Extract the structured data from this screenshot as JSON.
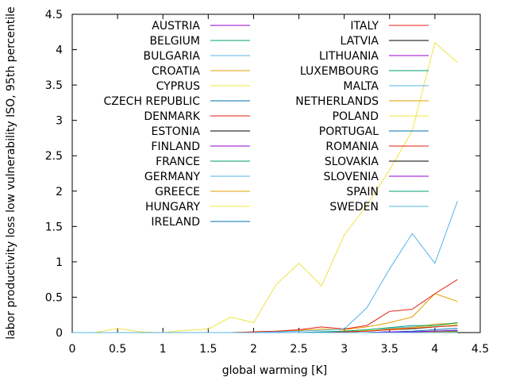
{
  "chart_data": {
    "type": "line",
    "title": "",
    "xlabel": "global warming [K]",
    "ylabel": "labor productivity loss low vulnerability ISO, 95th percentile",
    "xlim": [
      0,
      4.5
    ],
    "ylim": [
      0,
      4.5
    ],
    "xticks": [
      "0",
      "0.5",
      "1",
      "1.5",
      "2",
      "2.5",
      "3",
      "3.5",
      "4",
      "4.5"
    ],
    "yticks": [
      "0",
      "0.5",
      "1",
      "1.5",
      "2",
      "2.5",
      "3",
      "3.5",
      "4",
      "4.5"
    ],
    "grid": false,
    "legend_position": "top, two columns",
    "x": [
      0,
      0.25,
      0.5,
      0.75,
      1,
      1.25,
      1.5,
      1.75,
      2,
      2.25,
      2.5,
      2.75,
      3,
      3.25,
      3.5,
      3.75,
      4,
      4.25
    ],
    "series": [
      {
        "name": "AUSTRIA",
        "color": "#9400d3",
        "values": [
          0,
          0,
          0,
          0,
          0,
          0,
          0,
          0,
          0,
          0,
          0,
          0,
          0,
          0,
          0,
          0,
          0.01,
          0.02
        ]
      },
      {
        "name": "BELGIUM",
        "color": "#009e73",
        "values": [
          0,
          0,
          0,
          0,
          0,
          0,
          0,
          0,
          0,
          0,
          0,
          0,
          0,
          0,
          0.01,
          0.01,
          0.02,
          0.03
        ]
      },
      {
        "name": "BULGARIA",
        "color": "#56b4e9",
        "values": [
          0,
          0,
          0,
          0,
          0,
          0,
          0,
          0,
          0,
          0,
          0,
          0,
          0.01,
          0.02,
          0.06,
          0.08,
          0.1,
          0.14
        ]
      },
      {
        "name": "CROATIA",
        "color": "#e69f00",
        "values": [
          0,
          0,
          0,
          0,
          0,
          0,
          0,
          0,
          0,
          0,
          0,
          0,
          0.01,
          0.02,
          0.05,
          0.07,
          0.12,
          0.13
        ]
      },
      {
        "name": "CYPRUS",
        "color": "#f0e442",
        "values": [
          0,
          0,
          0,
          0,
          0,
          0,
          0,
          0,
          0,
          0,
          0,
          0.01,
          0.02,
          0.03,
          0.04,
          0.05,
          0.1,
          0.12
        ]
      },
      {
        "name": "CZECH REPUBLIC",
        "color": "#0072b2",
        "values": [
          0,
          0,
          0,
          0,
          0,
          0,
          0,
          0,
          0,
          0,
          0,
          0,
          0,
          0,
          0,
          0.01,
          0.01,
          0.02
        ]
      },
      {
        "name": "DENMARK",
        "color": "#e51e10",
        "values": [
          0,
          0,
          0,
          0,
          0,
          0,
          0,
          0,
          0,
          0,
          0,
          0,
          0,
          0,
          0,
          0,
          0,
          0.01
        ]
      },
      {
        "name": "ESTONIA",
        "color": "#000000",
        "values": [
          0,
          0,
          0,
          0,
          0,
          0,
          0,
          0,
          0,
          0,
          0,
          0,
          0,
          0,
          0,
          0,
          0,
          0
        ]
      },
      {
        "name": "FINLAND",
        "color": "#9400d3",
        "values": [
          0,
          0,
          0,
          0,
          0,
          0,
          0,
          0,
          0,
          0,
          0,
          0,
          0,
          0,
          0,
          0,
          0,
          0
        ]
      },
      {
        "name": "FRANCE",
        "color": "#009e73",
        "values": [
          0,
          0,
          0,
          0,
          0,
          0,
          0,
          0,
          0,
          0,
          0,
          0,
          0.01,
          0.02,
          0.04,
          0.05,
          0.08,
          0.1
        ]
      },
      {
        "name": "GERMANY",
        "color": "#56b4e9",
        "values": [
          0,
          0,
          0,
          0,
          0,
          0,
          0,
          0,
          0,
          0,
          0,
          0,
          0,
          0,
          0.01,
          0.01,
          0.02,
          0.03
        ]
      },
      {
        "name": "GREECE",
        "color": "#e69f00",
        "values": [
          0,
          0,
          0,
          0,
          0,
          0,
          0,
          0,
          0.01,
          0.02,
          0.03,
          0.05,
          0.04,
          0.08,
          0.14,
          0.22,
          0.55,
          0.44
        ]
      },
      {
        "name": "HUNGARY",
        "color": "#f0e442",
        "values": [
          0,
          0,
          0,
          0,
          0,
          0,
          0,
          0,
          0,
          0,
          0,
          0,
          0.01,
          0.02,
          0.04,
          0.06,
          0.1,
          0.13
        ]
      },
      {
        "name": "IRELAND",
        "color": "#0072b2",
        "values": [
          0,
          0,
          0,
          0,
          0,
          0,
          0,
          0,
          0,
          0,
          0,
          0,
          0,
          0,
          0,
          0,
          0,
          0
        ]
      },
      {
        "name": "ITALY",
        "color": "#e51e10",
        "values": [
          0,
          0,
          0,
          0,
          0,
          0,
          0,
          0,
          0.01,
          0.02,
          0.04,
          0.08,
          0.05,
          0.1,
          0.3,
          0.33,
          0.55,
          0.75
        ]
      },
      {
        "name": "LATVIA",
        "color": "#000000",
        "values": [
          0,
          0,
          0,
          0,
          0,
          0,
          0,
          0,
          0,
          0,
          0,
          0,
          0,
          0,
          0,
          0,
          0,
          0
        ]
      },
      {
        "name": "LITHUANIA",
        "color": "#9400d3",
        "values": [
          0,
          0,
          0,
          0,
          0,
          0,
          0,
          0,
          0,
          0,
          0,
          0,
          0,
          0,
          0,
          0,
          0,
          0
        ]
      },
      {
        "name": "LUXEMBOURG",
        "color": "#009e73",
        "values": [
          0,
          0,
          0,
          0,
          0,
          0,
          0,
          0,
          0,
          0,
          0,
          0,
          0,
          0,
          0,
          0,
          0.01,
          0.02
        ]
      },
      {
        "name": "MALTA",
        "color": "#56b4e9",
        "values": [
          0,
          0,
          0,
          0,
          0,
          0,
          0,
          0,
          0,
          0.01,
          0.02,
          0.03,
          0.05,
          0.35,
          0.9,
          1.4,
          0.98,
          1.86
        ]
      },
      {
        "name": "NETHERLANDS",
        "color": "#e69f00",
        "values": [
          0,
          0,
          0,
          0,
          0,
          0,
          0,
          0,
          0,
          0,
          0,
          0,
          0,
          0,
          0,
          0,
          0.01,
          0.01
        ]
      },
      {
        "name": "POLAND",
        "color": "#f0e442",
        "values": [
          0,
          0,
          0.06,
          0.01,
          0,
          0.03,
          0.05,
          0.22,
          0.14,
          0.68,
          0.98,
          0.66,
          1.38,
          1.8,
          2.3,
          2.85,
          4.1,
          3.82
        ]
      },
      {
        "name": "PORTUGAL",
        "color": "#0072b2",
        "values": [
          0,
          0,
          0,
          0,
          0,
          0,
          0,
          0,
          0,
          0,
          0,
          0,
          0,
          0,
          0.01,
          0.02,
          0.04,
          0.06
        ]
      },
      {
        "name": "ROMANIA",
        "color": "#e51e10",
        "values": [
          0,
          0,
          0,
          0,
          0,
          0,
          0,
          0,
          0,
          0,
          0,
          0,
          0.01,
          0.02,
          0.04,
          0.06,
          0.08,
          0.1
        ]
      },
      {
        "name": "SLOVAKIA",
        "color": "#000000",
        "values": [
          0,
          0,
          0,
          0,
          0,
          0,
          0,
          0,
          0,
          0,
          0,
          0,
          0,
          0,
          0,
          0,
          0,
          0
        ]
      },
      {
        "name": "SLOVENIA",
        "color": "#9400d3",
        "values": [
          0,
          0,
          0,
          0,
          0,
          0,
          0,
          0,
          0,
          0,
          0,
          0,
          0,
          0,
          0.01,
          0.01,
          0.02,
          0.03
        ]
      },
      {
        "name": "SPAIN",
        "color": "#009e73",
        "values": [
          0,
          0,
          0,
          0,
          0,
          0,
          0,
          0,
          0,
          0,
          0,
          0.01,
          0.02,
          0.04,
          0.07,
          0.1,
          0.1,
          0.14
        ]
      },
      {
        "name": "SWEDEN",
        "color": "#56b4e9",
        "values": [
          0,
          0,
          0,
          0,
          0,
          0,
          0,
          0,
          0,
          0,
          0,
          0,
          0,
          0,
          0,
          0,
          0,
          0
        ]
      }
    ]
  }
}
